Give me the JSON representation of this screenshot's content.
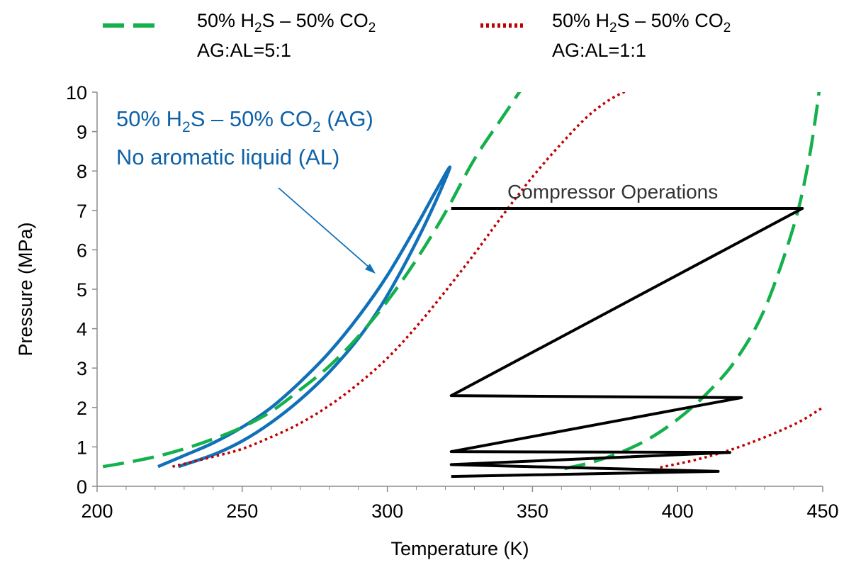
{
  "chart_data": {
    "type": "line",
    "title": "",
    "xlabel": "Temperature (K)",
    "ylabel": "Pressure (MPa)",
    "xlim": [
      200,
      450
    ],
    "ylim": [
      0,
      10
    ],
    "xticks": [
      200,
      250,
      300,
      350,
      400,
      450
    ],
    "yticks": [
      0,
      1,
      2,
      3,
      4,
      5,
      6,
      7,
      8,
      9,
      10
    ],
    "grid": false,
    "legend_position": "top",
    "legend": [
      {
        "series": "ag_al_5_1",
        "line1": {
          "pre": "50% H",
          "sub1": "2",
          "mid": "S – 50% CO",
          "sub2": "2"
        },
        "line2": "AG:AL=5:1"
      },
      {
        "series": "ag_al_1_1",
        "line1": {
          "pre": "50% H",
          "sub1": "2",
          "mid": "S – 50% CO",
          "sub2": "2"
        },
        "line2": "AG:AL=1:1"
      }
    ],
    "annotations": {
      "no_al_line1": {
        "pre": "50% H",
        "sub1": "2",
        "mid": "S – 50% CO",
        "sub2": "2",
        "post": " (AG)"
      },
      "no_al_line2": "No aromatic liquid (AL)",
      "compressor": "Compressor Operations"
    },
    "series": [
      {
        "id": "no_al",
        "color": "#1070b8",
        "style": "solid",
        "x": [
          221,
          230,
          240,
          250,
          260,
          270,
          280,
          290,
          300,
          310,
          316,
          321.5,
          318,
          312,
          305,
          298,
          290,
          280,
          270,
          260,
          250,
          240,
          228
        ],
        "y": [
          0.5,
          0.78,
          1.1,
          1.5,
          2.0,
          2.65,
          3.4,
          4.3,
          5.35,
          6.6,
          7.4,
          8.1,
          7.45,
          6.5,
          5.5,
          4.6,
          3.75,
          2.9,
          2.2,
          1.62,
          1.15,
          0.8,
          0.5
        ]
      },
      {
        "id": "ag_al_5_1_low",
        "color": "#14b04c",
        "style": "dashed",
        "x": [
          202,
          210,
          220,
          230,
          240,
          250,
          260,
          270,
          280,
          290,
          300,
          310,
          320,
          330,
          340,
          350,
          354
        ],
        "y": [
          0.5,
          0.6,
          0.75,
          0.95,
          1.2,
          1.5,
          1.9,
          2.45,
          3.05,
          3.8,
          4.7,
          5.75,
          6.95,
          8.3,
          9.4,
          10.5,
          11
        ]
      },
      {
        "id": "ag_al_5_1_high",
        "color": "#14b04c",
        "style": "dashed",
        "x": [
          361,
          370,
          380,
          390,
          400,
          410,
          420,
          430,
          440,
          445,
          448,
          449.5
        ],
        "y": [
          0.45,
          0.6,
          0.85,
          1.2,
          1.7,
          2.35,
          3.2,
          4.5,
          6.6,
          8.2,
          9.6,
          10.5
        ]
      },
      {
        "id": "ag_al_1_1_low",
        "color": "#c00000",
        "style": "dotted",
        "x": [
          226,
          240,
          250,
          260,
          270,
          280,
          290,
          300,
          310,
          320,
          330,
          340,
          350,
          360,
          370,
          380,
          390,
          394
        ],
        "y": [
          0.5,
          0.75,
          0.95,
          1.25,
          1.6,
          2.05,
          2.6,
          3.25,
          4.05,
          4.95,
          5.9,
          6.9,
          7.85,
          8.7,
          9.45,
          9.95,
          10.2,
          10.2
        ]
      },
      {
        "id": "ag_al_1_1_high",
        "color": "#c00000",
        "style": "dotted",
        "x": [
          394,
          405,
          415,
          425,
          435,
          443,
          450
        ],
        "y": [
          0.48,
          0.65,
          0.85,
          1.1,
          1.4,
          1.68,
          2.0
        ]
      },
      {
        "id": "compressor",
        "color": "#000000",
        "style": "solid",
        "x": [
          322,
          443,
          322,
          422,
          322,
          418,
          322,
          414,
          322
        ],
        "y": [
          7.05,
          7.05,
          2.3,
          2.25,
          0.88,
          0.86,
          0.55,
          0.38,
          0.25
        ]
      }
    ]
  }
}
